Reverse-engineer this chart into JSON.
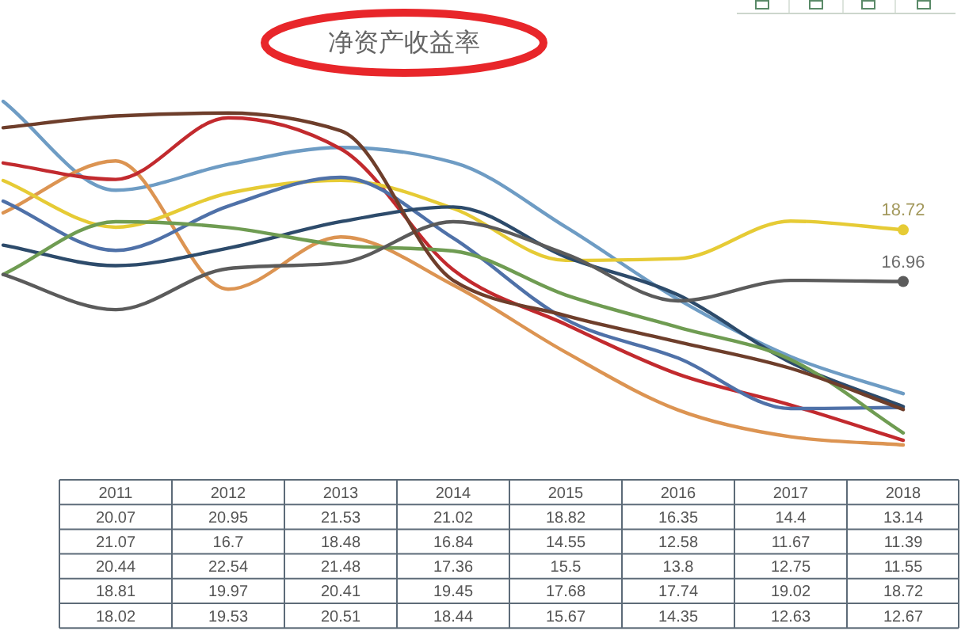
{
  "chart_data": {
    "type": "line",
    "title": "净资产收益率",
    "categories": [
      null,
      "2011",
      "2012",
      "2013",
      "2014",
      "2015",
      "2016",
      "2017",
      "2018"
    ],
    "tick_labels": "x",
    "series": [
      {
        "color": "#6e9cc4",
        "values": [
          23.1,
          20.07,
          20.95,
          21.53,
          21.02,
          18.82,
          16.35,
          14.4,
          13.14
        ],
        "value_labels": [
          null,
          "20.07",
          "20.95",
          "21.53",
          "21.02",
          "18.82",
          "16.35",
          "14.4",
          "13.14"
        ]
      },
      {
        "color": "#dc9452",
        "values": [
          19.3,
          21.07,
          16.7,
          18.48,
          16.84,
          14.55,
          12.58,
          11.67,
          11.39
        ],
        "value_labels": [
          null,
          "21.07",
          "16.7",
          "18.48",
          "16.84",
          "14.55",
          "12.58",
          "11.67",
          "11.39"
        ]
      },
      {
        "color": "#c22a2e",
        "values": [
          21.0,
          20.44,
          22.54,
          21.48,
          17.36,
          15.5,
          13.8,
          12.75,
          11.55
        ],
        "value_labels": [
          null,
          "20.44",
          "22.54",
          "21.48",
          "17.36",
          "15.5",
          "13.8",
          "12.75",
          "11.55"
        ]
      },
      {
        "color": "#e6cb35",
        "values": [
          20.4,
          18.81,
          19.97,
          20.41,
          19.45,
          17.68,
          17.74,
          19.02,
          18.72
        ],
        "value_labels": [
          null,
          "18.81",
          "19.97",
          "20.41",
          "19.45",
          "17.68",
          "17.74",
          "19.02",
          "18.72"
        ]
      },
      {
        "color": "#4f71a8",
        "values": [
          19.7,
          18.02,
          19.53,
          20.51,
          18.44,
          15.67,
          14.35,
          12.63,
          12.67
        ],
        "value_labels": [
          null,
          "18.02",
          "19.53",
          "20.51",
          "18.44",
          "15.67",
          "14.35",
          "12.63",
          "12.67"
        ]
      },
      {
        "color": "#2d4b6b",
        "values": [
          18.2,
          17.5,
          18.1,
          19.0,
          19.5,
          17.8,
          16.5,
          14.2,
          12.7
        ]
      },
      {
        "color": "#6f9c52",
        "values": [
          17.2,
          19.0,
          18.8,
          18.2,
          18.0,
          16.5,
          15.4,
          14.3,
          11.8
        ]
      },
      {
        "color": "#5b5b5b",
        "values": [
          17.2,
          16.0,
          17.4,
          17.6,
          19.0,
          17.9,
          16.3,
          17.0,
          16.96
        ]
      },
      {
        "color": "#6e3e2b",
        "values": [
          22.2,
          22.6,
          22.7,
          22.1,
          17.0,
          15.8,
          14.9,
          14.0,
          12.6
        ]
      }
    ],
    "annotations": [
      {
        "text": "18.72",
        "x": "2018",
        "y": 18.72
      },
      {
        "text": "16.96",
        "x": "2018",
        "y": 16.96
      }
    ]
  }
}
